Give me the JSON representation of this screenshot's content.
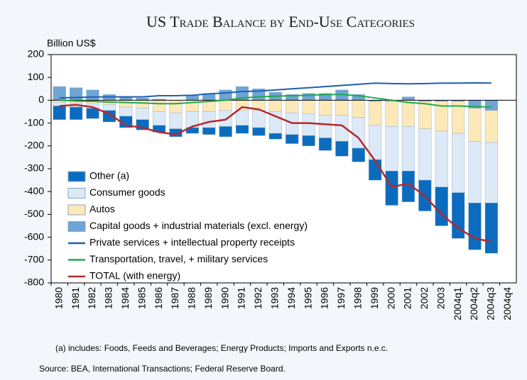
{
  "chart_data": {
    "type": "bar",
    "title": "US Trade Balance by End-Use Categories",
    "y_label": "Billion US$",
    "footnote": "(a) includes: Foods, Feeds and Beverages; Energy Products; Imports and Exports n.e.c.",
    "source": "Source: BEA, International Transactions; Federal Reserve Board.",
    "categories": [
      "1980",
      "1981",
      "1982",
      "1983",
      "1984",
      "1985",
      "1986",
      "1987",
      "1988",
      "1989",
      "1990",
      "1991",
      "1992",
      "1993",
      "1994",
      "1995",
      "1996",
      "1997",
      "1998",
      "1999",
      "2000",
      "2001",
      "2002",
      "2003",
      "2004q1",
      "2004q2",
      "2004q3",
      "2004q4"
    ],
    "ylim": [
      -800,
      200
    ],
    "yticks": [
      -800,
      -700,
      -600,
      -500,
      -400,
      -300,
      -200,
      -100,
      0,
      100,
      200
    ],
    "series": [
      {
        "name": "Other (a)",
        "type": "bar",
        "color": "#0b6cbf",
        "values": [
          -60,
          -55,
          -45,
          -50,
          -50,
          -45,
          -30,
          -35,
          -25,
          -30,
          -45,
          -35,
          -35,
          -25,
          -40,
          -45,
          -55,
          -65,
          -60,
          -90,
          -150,
          -135,
          -135,
          -170,
          -200,
          -205,
          -220,
          null
        ]
      },
      {
        "name": "Consumer goods",
        "type": "bar",
        "color": "#dce9f7",
        "values": [
          -15,
          -18,
          -20,
          -25,
          -40,
          -50,
          -60,
          -70,
          -70,
          -70,
          -70,
          -65,
          -75,
          -95,
          -95,
          -95,
          -100,
          -115,
          -135,
          -150,
          -195,
          -195,
          -225,
          -245,
          -260,
          -270,
          -265,
          null
        ]
      },
      {
        "name": "Autos",
        "type": "bar",
        "color": "#fde9b8",
        "values": [
          -10,
          -12,
          -15,
          -20,
          -30,
          -35,
          -50,
          -55,
          -50,
          -50,
          -45,
          -45,
          -45,
          -50,
          -55,
          -60,
          -65,
          -65,
          -75,
          -105,
          -110,
          -115,
          -120,
          -130,
          -140,
          -145,
          -140,
          null
        ]
      },
      {
        "name": "Capital goods + industrial materials (excl. energy)",
        "type": "bar",
        "color": "#6fa5d6",
        "values": [
          60,
          55,
          45,
          25,
          15,
          10,
          5,
          0,
          20,
          30,
          45,
          60,
          50,
          35,
          25,
          30,
          30,
          45,
          25,
          -5,
          -5,
          15,
          -5,
          -5,
          -5,
          -35,
          -45,
          null
        ]
      },
      {
        "name": "Private services + intellectual property receipts",
        "type": "line",
        "color": "#1f5fae",
        "values": [
          10,
          12,
          14,
          15,
          15,
          15,
          20,
          20,
          22,
          28,
          32,
          38,
          40,
          45,
          50,
          55,
          60,
          65,
          70,
          75,
          73,
          72,
          73,
          75,
          75,
          76,
          75,
          null
        ]
      },
      {
        "name": "Transportation, travel, + military services",
        "type": "line",
        "color": "#22a84a",
        "values": [
          0,
          -3,
          -5,
          -8,
          -10,
          -12,
          -15,
          -15,
          -10,
          -5,
          0,
          10,
          15,
          18,
          20,
          22,
          25,
          25,
          20,
          10,
          0,
          -10,
          -15,
          -25,
          -25,
          -28,
          -30,
          null
        ]
      },
      {
        "name": "TOTAL (with energy)",
        "type": "line",
        "color": "#b5282e",
        "values": [
          -25,
          -20,
          -30,
          -60,
          -110,
          -120,
          -140,
          -150,
          -115,
          -95,
          -85,
          -30,
          -40,
          -70,
          -100,
          -100,
          -105,
          -110,
          -165,
          -265,
          -380,
          -365,
          -420,
          -500,
          -560,
          -605,
          -620,
          null
        ]
      }
    ]
  }
}
